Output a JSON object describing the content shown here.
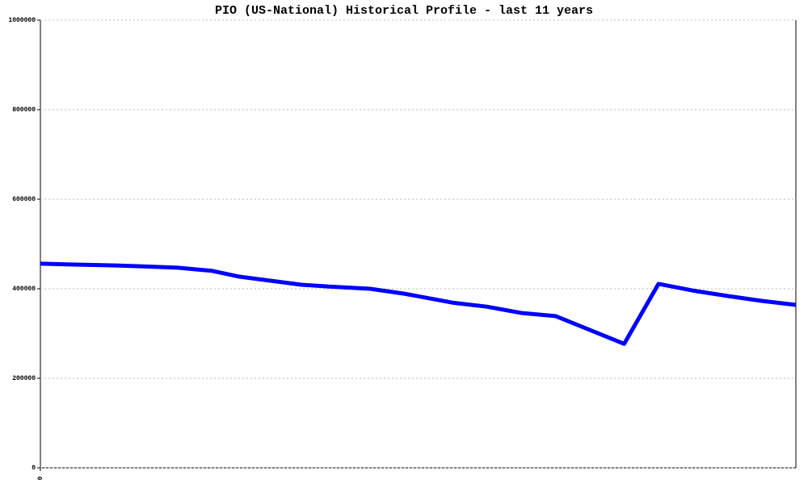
{
  "chart_data": {
    "type": "line",
    "title": "PIO (US-National) Historical Profile - last 11 years",
    "x": [
      0,
      0.5,
      1.1,
      1.5,
      2.0,
      2.5,
      2.9,
      3.8,
      4.2,
      4.8,
      5.3,
      6.0,
      6.5,
      7.0,
      7.5,
      8.5,
      9.0,
      9.5,
      10.0,
      10.5,
      11.0
    ],
    "series": [
      {
        "name": "PIO",
        "color": "#0000ff",
        "values": [
          456000,
          454000,
          452000,
          450000,
          447000,
          440000,
          427000,
          409000,
          405000,
          400000,
          389000,
          369000,
          360000,
          346000,
          339000,
          277000,
          411000,
          396000,
          384000,
          373000,
          364000
        ]
      }
    ],
    "xlim": [
      0,
      11
    ],
    "xticks": [
      0
    ],
    "ylim": [
      0,
      1000000
    ],
    "yticks": [
      0,
      200000,
      400000,
      600000,
      800000,
      1000000
    ],
    "grid": true
  }
}
